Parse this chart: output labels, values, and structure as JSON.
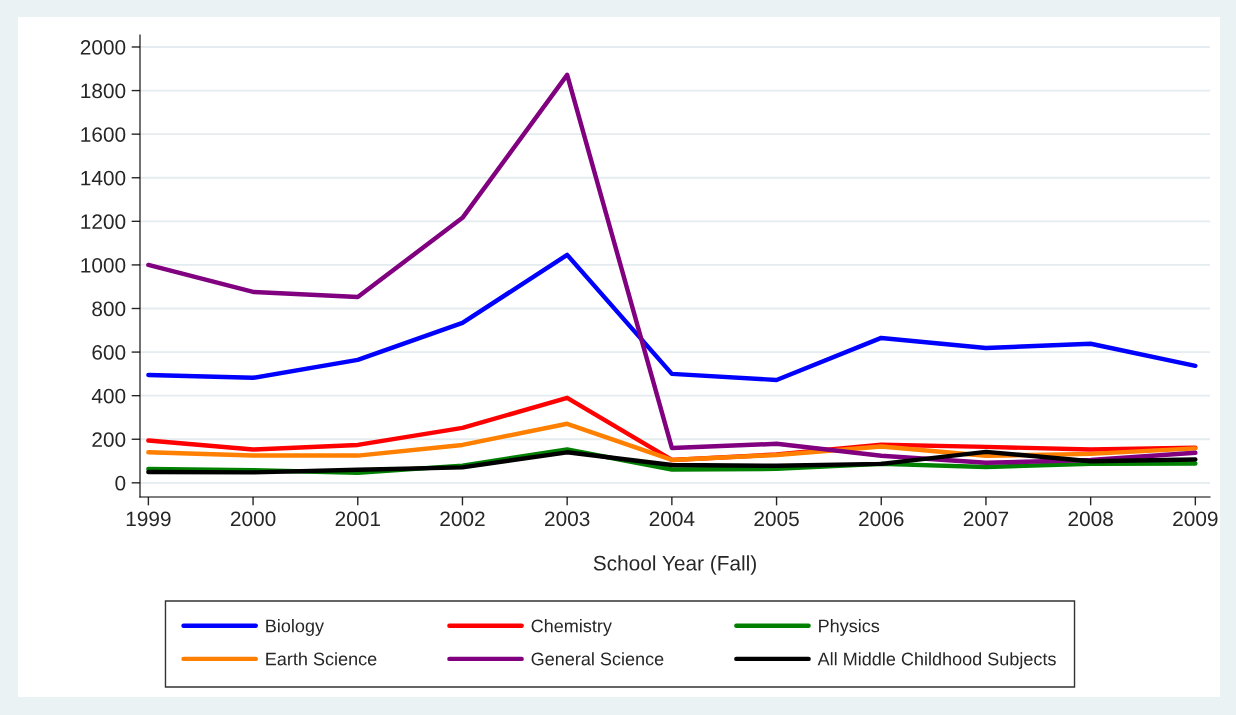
{
  "chart_data": {
    "type": "line",
    "xlabel": "School Year (Fall)",
    "x": [
      1999,
      2000,
      2001,
      2002,
      2003,
      2004,
      2005,
      2006,
      2007,
      2008,
      2009
    ],
    "xlim": [
      1998.92,
      2009.14
    ],
    "xticks": [
      1999,
      2000,
      2001,
      2002,
      2003,
      2004,
      2005,
      2006,
      2007,
      2008,
      2009
    ],
    "ylim": [
      -65,
      2055
    ],
    "yticks": [
      0,
      200,
      400,
      600,
      800,
      1000,
      1200,
      1400,
      1600,
      1800,
      2000
    ],
    "grid": "y",
    "legend": "bottom",
    "marker": "none",
    "line_style": "solid",
    "series": [
      {
        "name": "Biology",
        "color": "#0000ff",
        "values": [
          495,
          482,
          564,
          734,
          1046,
          500,
          472,
          665,
          619,
          638,
          537
        ]
      },
      {
        "name": "Chemistry",
        "color": "#ff0000",
        "values": [
          194,
          153,
          174,
          252,
          390,
          105,
          130,
          175,
          165,
          153,
          161
        ]
      },
      {
        "name": "Physics",
        "color": "#008000",
        "values": [
          64,
          58,
          46,
          79,
          153,
          61,
          64,
          87,
          73,
          87,
          89
        ]
      },
      {
        "name": "Earth Science",
        "color": "#ff8000",
        "values": [
          140,
          125,
          125,
          174,
          271,
          105,
          128,
          167,
          124,
          133,
          158
        ]
      },
      {
        "name": "General Science",
        "color": "#800080",
        "values": [
          1000,
          876,
          853,
          1216,
          1872,
          160,
          179,
          124,
          92,
          105,
          138
        ]
      },
      {
        "name": "All Middle Childhood Subjects",
        "color": "#000000",
        "values": [
          50,
          48,
          60,
          71,
          140,
          82,
          78,
          87,
          142,
          99,
          107
        ]
      }
    ]
  }
}
